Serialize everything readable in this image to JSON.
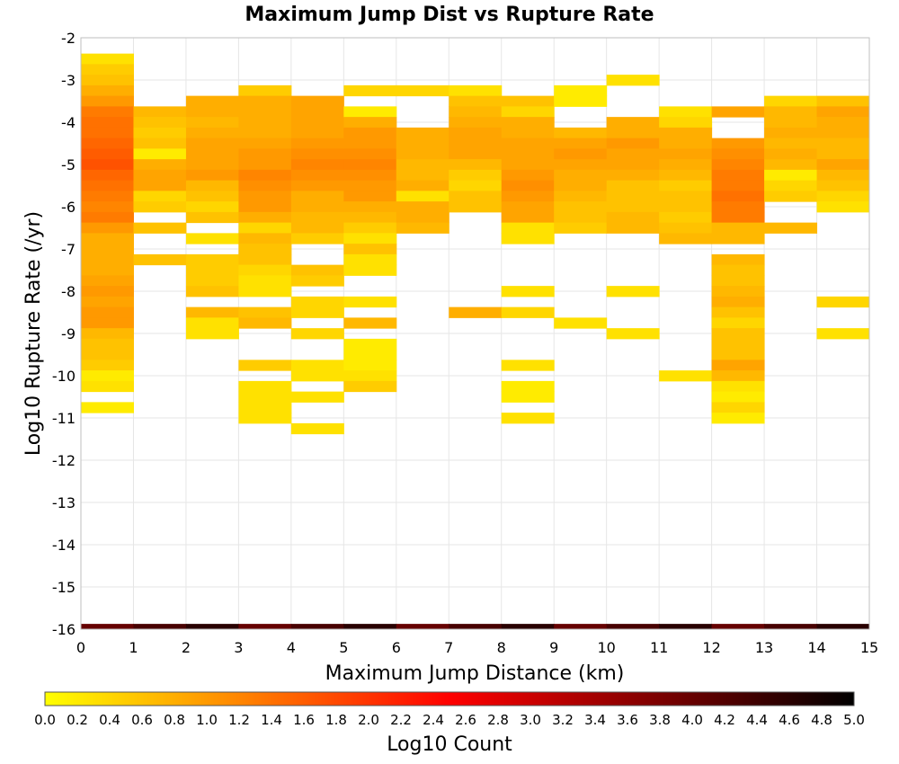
{
  "chart_data": {
    "type": "heatmap",
    "title": "Maximum Jump Dist vs Rupture Rate",
    "xlabel": "Maximum Jump Distance (km)",
    "ylabel": "Log10 Rupture Rate (/yr)",
    "xlim": [
      0,
      15
    ],
    "ylim": [
      -16,
      -2
    ],
    "x_bin_width": 1,
    "y_bin_width": 0.25,
    "x_ticks": [
      "0",
      "1",
      "2",
      "3",
      "4",
      "5",
      "6",
      "7",
      "8",
      "9",
      "10",
      "11",
      "12",
      "13",
      "14",
      "15"
    ],
    "y_ticks": [
      "-2",
      "-3",
      "-4",
      "-5",
      "-6",
      "-7",
      "-8",
      "-9",
      "-10",
      "-11",
      "-12",
      "-13",
      "-14",
      "-15",
      "-16"
    ],
    "grid": true,
    "colorbar": {
      "label": "Log10 Count",
      "range": [
        0,
        5
      ],
      "colors": [
        "#ffff00",
        "#ff8000",
        "#ff0000",
        "#800000",
        "#000000"
      ],
      "ticks": [
        "0.0",
        "0.2",
        "0.4",
        "0.6",
        "0.8",
        "1.0",
        "1.2",
        "1.4",
        "1.6",
        "1.8",
        "2.0",
        "2.2",
        "2.4",
        "2.6",
        "2.8",
        "3.0",
        "3.2",
        "3.4",
        "3.6",
        "3.8",
        "4.0",
        "4.2",
        "4.4",
        "4.6",
        "4.8",
        "5.0"
      ],
      "placement": "bottom"
    },
    "columns": [
      {
        "x0": 0,
        "cells": [
          [
            -2.5,
            0.3
          ],
          [
            -2.75,
            0.5
          ],
          [
            -3.0,
            0.6
          ],
          [
            -3.25,
            0.8
          ],
          [
            -3.5,
            1.0
          ],
          [
            -3.75,
            1.3
          ],
          [
            -4.0,
            1.4
          ],
          [
            -4.25,
            1.4
          ],
          [
            -4.5,
            1.5
          ],
          [
            -4.75,
            1.6
          ],
          [
            -5.0,
            1.7
          ],
          [
            -5.25,
            1.5
          ],
          [
            -5.5,
            1.4
          ],
          [
            -5.75,
            1.3
          ],
          [
            -6.0,
            1.2
          ],
          [
            -6.25,
            1.3
          ],
          [
            -6.5,
            1.0
          ],
          [
            -6.75,
            0.8
          ],
          [
            -7.0,
            0.8
          ],
          [
            -7.25,
            0.8
          ],
          [
            -7.5,
            0.8
          ],
          [
            -7.75,
            0.9
          ],
          [
            -8.0,
            1.0
          ],
          [
            -8.25,
            0.9
          ],
          [
            -8.5,
            1.0
          ],
          [
            -8.75,
            1.0
          ],
          [
            -9.0,
            0.7
          ],
          [
            -9.25,
            0.6
          ],
          [
            -9.5,
            0.6
          ],
          [
            -9.75,
            0.5
          ],
          [
            -10.0,
            0.2
          ],
          [
            -10.25,
            0.3
          ],
          [
            -10.75,
            0.2
          ]
        ]
      },
      {
        "x0": 1,
        "cells": [
          [
            -3.75,
            0.7
          ],
          [
            -4.0,
            0.6
          ],
          [
            -4.25,
            0.5
          ],
          [
            -4.5,
            0.6
          ],
          [
            -4.75,
            0.2
          ],
          [
            -5.0,
            0.8
          ],
          [
            -5.25,
            0.9
          ],
          [
            -5.5,
            0.9
          ],
          [
            -5.75,
            0.4
          ],
          [
            -6.0,
            0.5
          ],
          [
            -6.5,
            0.6
          ],
          [
            -7.25,
            0.6
          ]
        ]
      },
      {
        "x0": 2,
        "cells": [
          [
            -3.5,
            0.8
          ],
          [
            -3.75,
            0.8
          ],
          [
            -4.0,
            0.7
          ],
          [
            -4.25,
            0.8
          ],
          [
            -4.5,
            0.9
          ],
          [
            -4.75,
            0.9
          ],
          [
            -5.0,
            0.9
          ],
          [
            -5.25,
            1.0
          ],
          [
            -5.5,
            0.7
          ],
          [
            -5.75,
            0.6
          ],
          [
            -6.0,
            0.4
          ],
          [
            -6.25,
            0.6
          ],
          [
            -6.75,
            0.3
          ],
          [
            -7.25,
            0.5
          ],
          [
            -7.5,
            0.5
          ],
          [
            -7.75,
            0.5
          ],
          [
            -8.0,
            0.6
          ],
          [
            -8.5,
            0.7
          ],
          [
            -8.75,
            0.3
          ],
          [
            -9.0,
            0.3
          ]
        ]
      },
      {
        "x0": 3,
        "cells": [
          [
            -3.25,
            0.5
          ],
          [
            -3.5,
            0.8
          ],
          [
            -3.75,
            0.8
          ],
          [
            -4.0,
            0.8
          ],
          [
            -4.25,
            0.8
          ],
          [
            -4.5,
            0.9
          ],
          [
            -4.75,
            1.0
          ],
          [
            -5.0,
            1.0
          ],
          [
            -5.25,
            1.2
          ],
          [
            -5.5,
            1.1
          ],
          [
            -5.75,
            1.0
          ],
          [
            -6.0,
            1.0
          ],
          [
            -6.25,
            0.8
          ],
          [
            -6.5,
            0.4
          ],
          [
            -6.75,
            0.7
          ],
          [
            -7.0,
            0.6
          ],
          [
            -7.25,
            0.6
          ],
          [
            -7.5,
            0.4
          ],
          [
            -7.75,
            0.3
          ],
          [
            -8.0,
            0.3
          ],
          [
            -8.5,
            0.6
          ],
          [
            -8.75,
            0.7
          ],
          [
            -9.75,
            0.5
          ],
          [
            -10.25,
            0.3
          ],
          [
            -10.5,
            0.3
          ],
          [
            -10.75,
            0.3
          ],
          [
            -11.0,
            0.3
          ]
        ]
      },
      {
        "x0": 4,
        "cells": [
          [
            -3.5,
            0.9
          ],
          [
            -3.75,
            0.9
          ],
          [
            -4.0,
            0.9
          ],
          [
            -4.25,
            0.9
          ],
          [
            -4.5,
            1.0
          ],
          [
            -4.75,
            1.1
          ],
          [
            -5.0,
            1.2
          ],
          [
            -5.25,
            1.1
          ],
          [
            -5.5,
            1.0
          ],
          [
            -5.75,
            0.8
          ],
          [
            -6.0,
            0.8
          ],
          [
            -6.25,
            0.7
          ],
          [
            -6.5,
            0.7
          ],
          [
            -6.75,
            0.5
          ],
          [
            -7.5,
            0.6
          ],
          [
            -7.75,
            0.5
          ],
          [
            -8.25,
            0.4
          ],
          [
            -8.5,
            0.4
          ],
          [
            -9.0,
            0.4
          ],
          [
            -9.75,
            0.3
          ],
          [
            -10.0,
            0.3
          ],
          [
            -10.5,
            0.3
          ],
          [
            -11.25,
            0.3
          ]
        ]
      },
      {
        "x0": 5,
        "cells": [
          [
            -3.25,
            0.4
          ],
          [
            -3.75,
            0.2
          ],
          [
            -4.0,
            0.8
          ],
          [
            -4.25,
            1.0
          ],
          [
            -4.5,
            1.0
          ],
          [
            -4.75,
            1.1
          ],
          [
            -5.0,
            1.2
          ],
          [
            -5.25,
            1.1
          ],
          [
            -5.5,
            1.0
          ],
          [
            -5.75,
            1.0
          ],
          [
            -6.0,
            0.8
          ],
          [
            -6.25,
            0.7
          ],
          [
            -6.5,
            0.5
          ],
          [
            -6.75,
            0.3
          ],
          [
            -7.0,
            0.6
          ],
          [
            -7.25,
            0.3
          ],
          [
            -7.5,
            0.3
          ],
          [
            -8.25,
            0.3
          ],
          [
            -8.75,
            0.7
          ],
          [
            -9.25,
            0.2
          ],
          [
            -9.5,
            0.2
          ],
          [
            -9.75,
            0.2
          ],
          [
            -10.0,
            0.3
          ],
          [
            -10.25,
            0.5
          ]
        ]
      },
      {
        "x0": 6,
        "cells": [
          [
            -3.25,
            0.4
          ],
          [
            -4.25,
            0.8
          ],
          [
            -4.5,
            0.8
          ],
          [
            -4.75,
            0.8
          ],
          [
            -5.0,
            0.7
          ],
          [
            -5.25,
            0.7
          ],
          [
            -5.5,
            0.8
          ],
          [
            -5.75,
            0.3
          ],
          [
            -6.0,
            0.8
          ],
          [
            -6.25,
            0.8
          ],
          [
            -6.5,
            0.7
          ]
        ]
      },
      {
        "x0": 7,
        "cells": [
          [
            -3.25,
            0.3
          ],
          [
            -3.5,
            0.6
          ],
          [
            -3.75,
            0.7
          ],
          [
            -4.0,
            0.8
          ],
          [
            -4.25,
            0.9
          ],
          [
            -4.5,
            0.9
          ],
          [
            -4.75,
            0.9
          ],
          [
            -5.0,
            0.7
          ],
          [
            -5.25,
            0.5
          ],
          [
            -5.5,
            0.4
          ],
          [
            -5.75,
            0.6
          ],
          [
            -6.0,
            0.6
          ],
          [
            -8.5,
            0.8
          ]
        ]
      },
      {
        "x0": 8,
        "cells": [
          [
            -3.5,
            0.6
          ],
          [
            -3.75,
            0.4
          ],
          [
            -4.0,
            0.8
          ],
          [
            -4.25,
            0.8
          ],
          [
            -4.5,
            0.9
          ],
          [
            -4.75,
            0.9
          ],
          [
            -5.0,
            0.9
          ],
          [
            -5.25,
            1.0
          ],
          [
            -5.5,
            1.1
          ],
          [
            -5.75,
            1.0
          ],
          [
            -6.0,
            0.9
          ],
          [
            -6.25,
            0.9
          ],
          [
            -6.5,
            0.3
          ],
          [
            -6.75,
            0.3
          ],
          [
            -8.0,
            0.3
          ],
          [
            -8.5,
            0.4
          ],
          [
            -9.75,
            0.3
          ],
          [
            -10.25,
            0.2
          ],
          [
            -10.5,
            0.2
          ],
          [
            -11.0,
            0.3
          ]
        ]
      },
      {
        "x0": 9,
        "cells": [
          [
            -3.25,
            0.2
          ],
          [
            -3.5,
            0.2
          ],
          [
            -4.25,
            0.7
          ],
          [
            -4.5,
            0.9
          ],
          [
            -4.75,
            1.0
          ],
          [
            -5.0,
            0.9
          ],
          [
            -5.25,
            0.8
          ],
          [
            -5.5,
            0.8
          ],
          [
            -5.75,
            0.7
          ],
          [
            -6.0,
            0.6
          ],
          [
            -6.25,
            0.6
          ],
          [
            -6.5,
            0.5
          ],
          [
            -8.75,
            0.3
          ]
        ]
      },
      {
        "x0": 10,
        "cells": [
          [
            -3.0,
            0.3
          ],
          [
            -4.0,
            0.8
          ],
          [
            -4.25,
            0.8
          ],
          [
            -4.5,
            1.0
          ],
          [
            -4.75,
            0.9
          ],
          [
            -5.0,
            0.9
          ],
          [
            -5.25,
            0.8
          ],
          [
            -5.5,
            0.6
          ],
          [
            -5.75,
            0.6
          ],
          [
            -6.0,
            0.6
          ],
          [
            -6.25,
            0.7
          ],
          [
            -6.5,
            0.7
          ],
          [
            -8.0,
            0.3
          ],
          [
            -9.0,
            0.3
          ]
        ]
      },
      {
        "x0": 11,
        "cells": [
          [
            -3.75,
            0.3
          ],
          [
            -4.0,
            0.4
          ],
          [
            -4.25,
            0.8
          ],
          [
            -4.5,
            0.8
          ],
          [
            -4.75,
            0.9
          ],
          [
            -5.0,
            0.8
          ],
          [
            -5.25,
            0.7
          ],
          [
            -5.5,
            0.5
          ],
          [
            -5.75,
            0.6
          ],
          [
            -6.0,
            0.6
          ],
          [
            -6.25,
            0.5
          ],
          [
            -6.5,
            0.6
          ],
          [
            -6.75,
            0.7
          ],
          [
            -10.0,
            0.3
          ]
        ]
      },
      {
        "x0": 12,
        "cells": [
          [
            -3.75,
            0.9
          ],
          [
            -4.5,
            1.0
          ],
          [
            -4.75,
            1.1
          ],
          [
            -5.0,
            1.2
          ],
          [
            -5.25,
            1.3
          ],
          [
            -5.5,
            1.3
          ],
          [
            -5.75,
            1.4
          ],
          [
            -6.0,
            1.3
          ],
          [
            -6.25,
            1.3
          ],
          [
            -6.5,
            0.7
          ],
          [
            -6.75,
            0.7
          ],
          [
            -7.25,
            0.7
          ],
          [
            -7.5,
            0.6
          ],
          [
            -7.75,
            0.6
          ],
          [
            -8.0,
            0.7
          ],
          [
            -8.25,
            0.8
          ],
          [
            -8.5,
            0.6
          ],
          [
            -8.75,
            0.4
          ],
          [
            -9.0,
            0.6
          ],
          [
            -9.25,
            0.6
          ],
          [
            -9.5,
            0.6
          ],
          [
            -9.75,
            0.9
          ],
          [
            -10.0,
            0.7
          ],
          [
            -10.25,
            0.3
          ],
          [
            -10.5,
            0.2
          ],
          [
            -10.75,
            0.4
          ],
          [
            -11.0,
            0.2
          ]
        ]
      },
      {
        "x0": 13,
        "cells": [
          [
            -3.5,
            0.4
          ],
          [
            -3.75,
            0.7
          ],
          [
            -4.0,
            0.7
          ],
          [
            -4.25,
            0.8
          ],
          [
            -4.5,
            0.7
          ],
          [
            -4.75,
            0.8
          ],
          [
            -5.0,
            0.7
          ],
          [
            -5.25,
            0.2
          ],
          [
            -5.5,
            0.4
          ],
          [
            -5.75,
            0.5
          ],
          [
            -6.5,
            0.7
          ]
        ]
      },
      {
        "x0": 14,
        "cells": [
          [
            -3.5,
            0.6
          ],
          [
            -3.75,
            0.9
          ],
          [
            -4.0,
            0.8
          ],
          [
            -4.25,
            0.8
          ],
          [
            -4.5,
            0.7
          ],
          [
            -4.75,
            0.7
          ],
          [
            -5.0,
            0.9
          ],
          [
            -5.25,
            0.7
          ],
          [
            -5.5,
            0.6
          ],
          [
            -5.75,
            0.4
          ],
          [
            -6.0,
            0.3
          ],
          [
            -8.25,
            0.4
          ],
          [
            -9.0,
            0.3
          ]
        ]
      },
      {
        "x0": "all",
        "floor_row": true,
        "y0": -16,
        "value_range": [
          4.0,
          4.6
        ]
      }
    ]
  }
}
